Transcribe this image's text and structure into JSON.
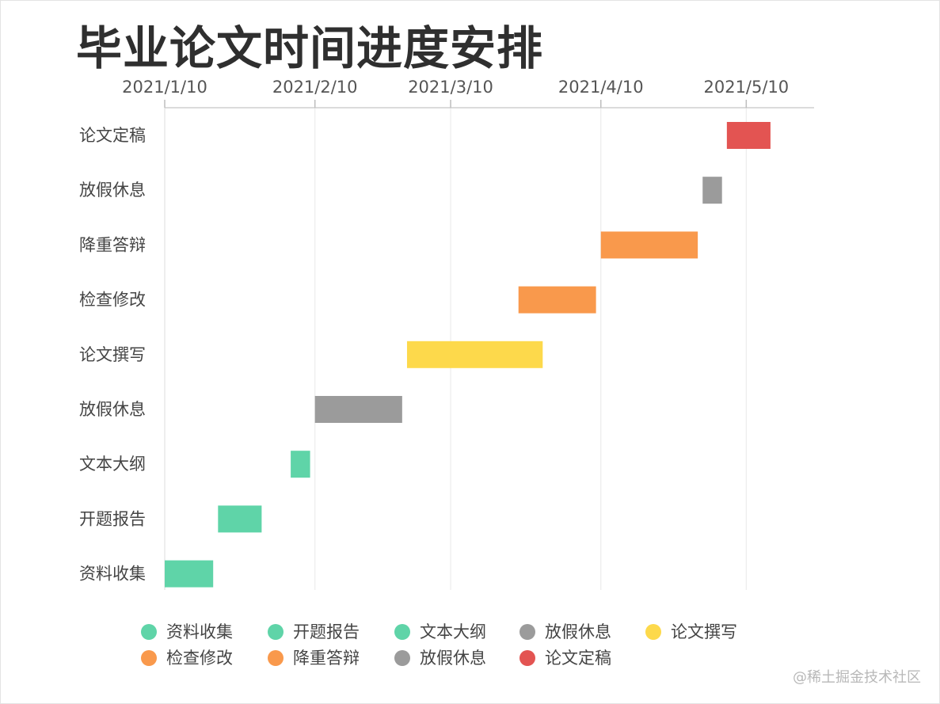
{
  "chart_data": {
    "type": "gantt",
    "title": "毕业论文时间进度安排",
    "x_axis": {
      "type": "date",
      "range": [
        "2021-01-10",
        "2021-05-24"
      ],
      "ticks": [
        {
          "date": "2021-01-10",
          "label": "2021/1/10"
        },
        {
          "date": "2021-02-10",
          "label": "2021/2/10"
        },
        {
          "date": "2021-03-10",
          "label": "2021/3/10"
        },
        {
          "date": "2021-04-10",
          "label": "2021/4/10"
        },
        {
          "date": "2021-05-10",
          "label": "2021/5/10"
        }
      ],
      "grid": true,
      "position": "top"
    },
    "tasks": [
      {
        "name": "资料收集",
        "start": "2021-01-10",
        "end": "2021-01-20",
        "color": "#5fd4a8"
      },
      {
        "name": "开题报告",
        "start": "2021-01-21",
        "end": "2021-01-30",
        "color": "#5fd4a8"
      },
      {
        "name": "文本大纲",
        "start": "2021-02-05",
        "end": "2021-02-09",
        "color": "#5fd4a8"
      },
      {
        "name": "放假休息",
        "start": "2021-02-10",
        "end": "2021-02-28",
        "color": "#9b9b9b"
      },
      {
        "name": "论文撰写",
        "start": "2021-03-01",
        "end": "2021-03-29",
        "color": "#fdd94b"
      },
      {
        "name": "检查修改",
        "start": "2021-03-24",
        "end": "2021-04-09",
        "color": "#f9994c"
      },
      {
        "name": "降重答辩",
        "start": "2021-04-10",
        "end": "2021-04-30",
        "color": "#f9994c"
      },
      {
        "name": "放假休息",
        "start": "2021-05-01",
        "end": "2021-05-05",
        "color": "#9b9b9b"
      },
      {
        "name": "论文定稿",
        "start": "2021-05-06",
        "end": "2021-05-15",
        "color": "#e35452"
      }
    ],
    "legend": {
      "placement": "bottom",
      "entries": [
        {
          "label": "资料收集",
          "color": "#5fd4a8"
        },
        {
          "label": "开题报告",
          "color": "#5fd4a8"
        },
        {
          "label": "文本大纲",
          "color": "#5fd4a8"
        },
        {
          "label": "放假休息",
          "color": "#9b9b9b"
        },
        {
          "label": "论文撰写",
          "color": "#fdd94b"
        },
        {
          "label": "检查修改",
          "color": "#f9994c"
        },
        {
          "label": "降重答辩",
          "color": "#f9994c"
        },
        {
          "label": "放假休息",
          "color": "#9b9b9b"
        },
        {
          "label": "论文定稿",
          "color": "#e35452"
        }
      ]
    }
  },
  "watermark": "@稀土掘金技术社区"
}
